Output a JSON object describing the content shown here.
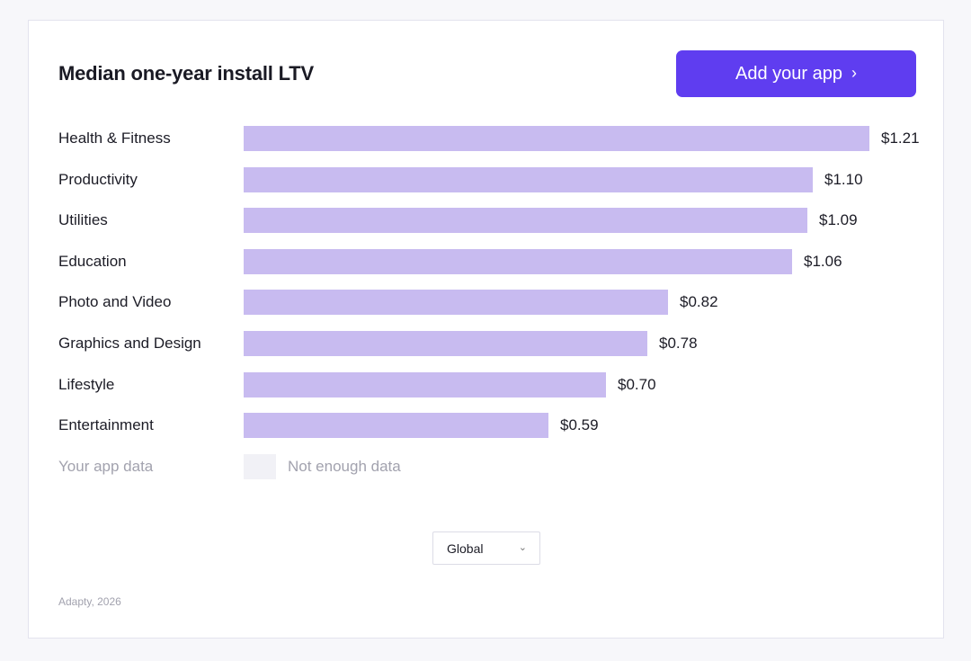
{
  "header": {
    "title": "Median one-year install LTV",
    "add_button_label": "Add your app",
    "add_button_chevron": "›"
  },
  "chart_data": {
    "type": "bar",
    "orientation": "horizontal",
    "title": "Median one-year install LTV",
    "categories": [
      "Health & Fitness",
      "Productivity",
      "Utilities",
      "Education",
      "Photo and Video",
      "Graphics and Design",
      "Lifestyle",
      "Entertainment"
    ],
    "values": [
      1.21,
      1.1,
      1.09,
      1.06,
      0.82,
      0.78,
      0.7,
      0.59
    ],
    "value_labels": [
      "$1.21",
      "$1.10",
      "$1.09",
      "$1.06",
      "$0.82",
      "$0.78",
      "$0.70",
      "$0.59"
    ],
    "xlim": [
      0,
      1.21
    ],
    "grid": false,
    "bar_color": "#c8bbf0"
  },
  "your_app": {
    "label": "Your app data",
    "status": "Not enough data"
  },
  "region_select": {
    "value": "Global"
  },
  "footer": {
    "source": "Adapty, 2026"
  },
  "colors": {
    "accent": "#5f3df0",
    "bar": "#c8bbf0",
    "muted": "#a2a2ae"
  }
}
